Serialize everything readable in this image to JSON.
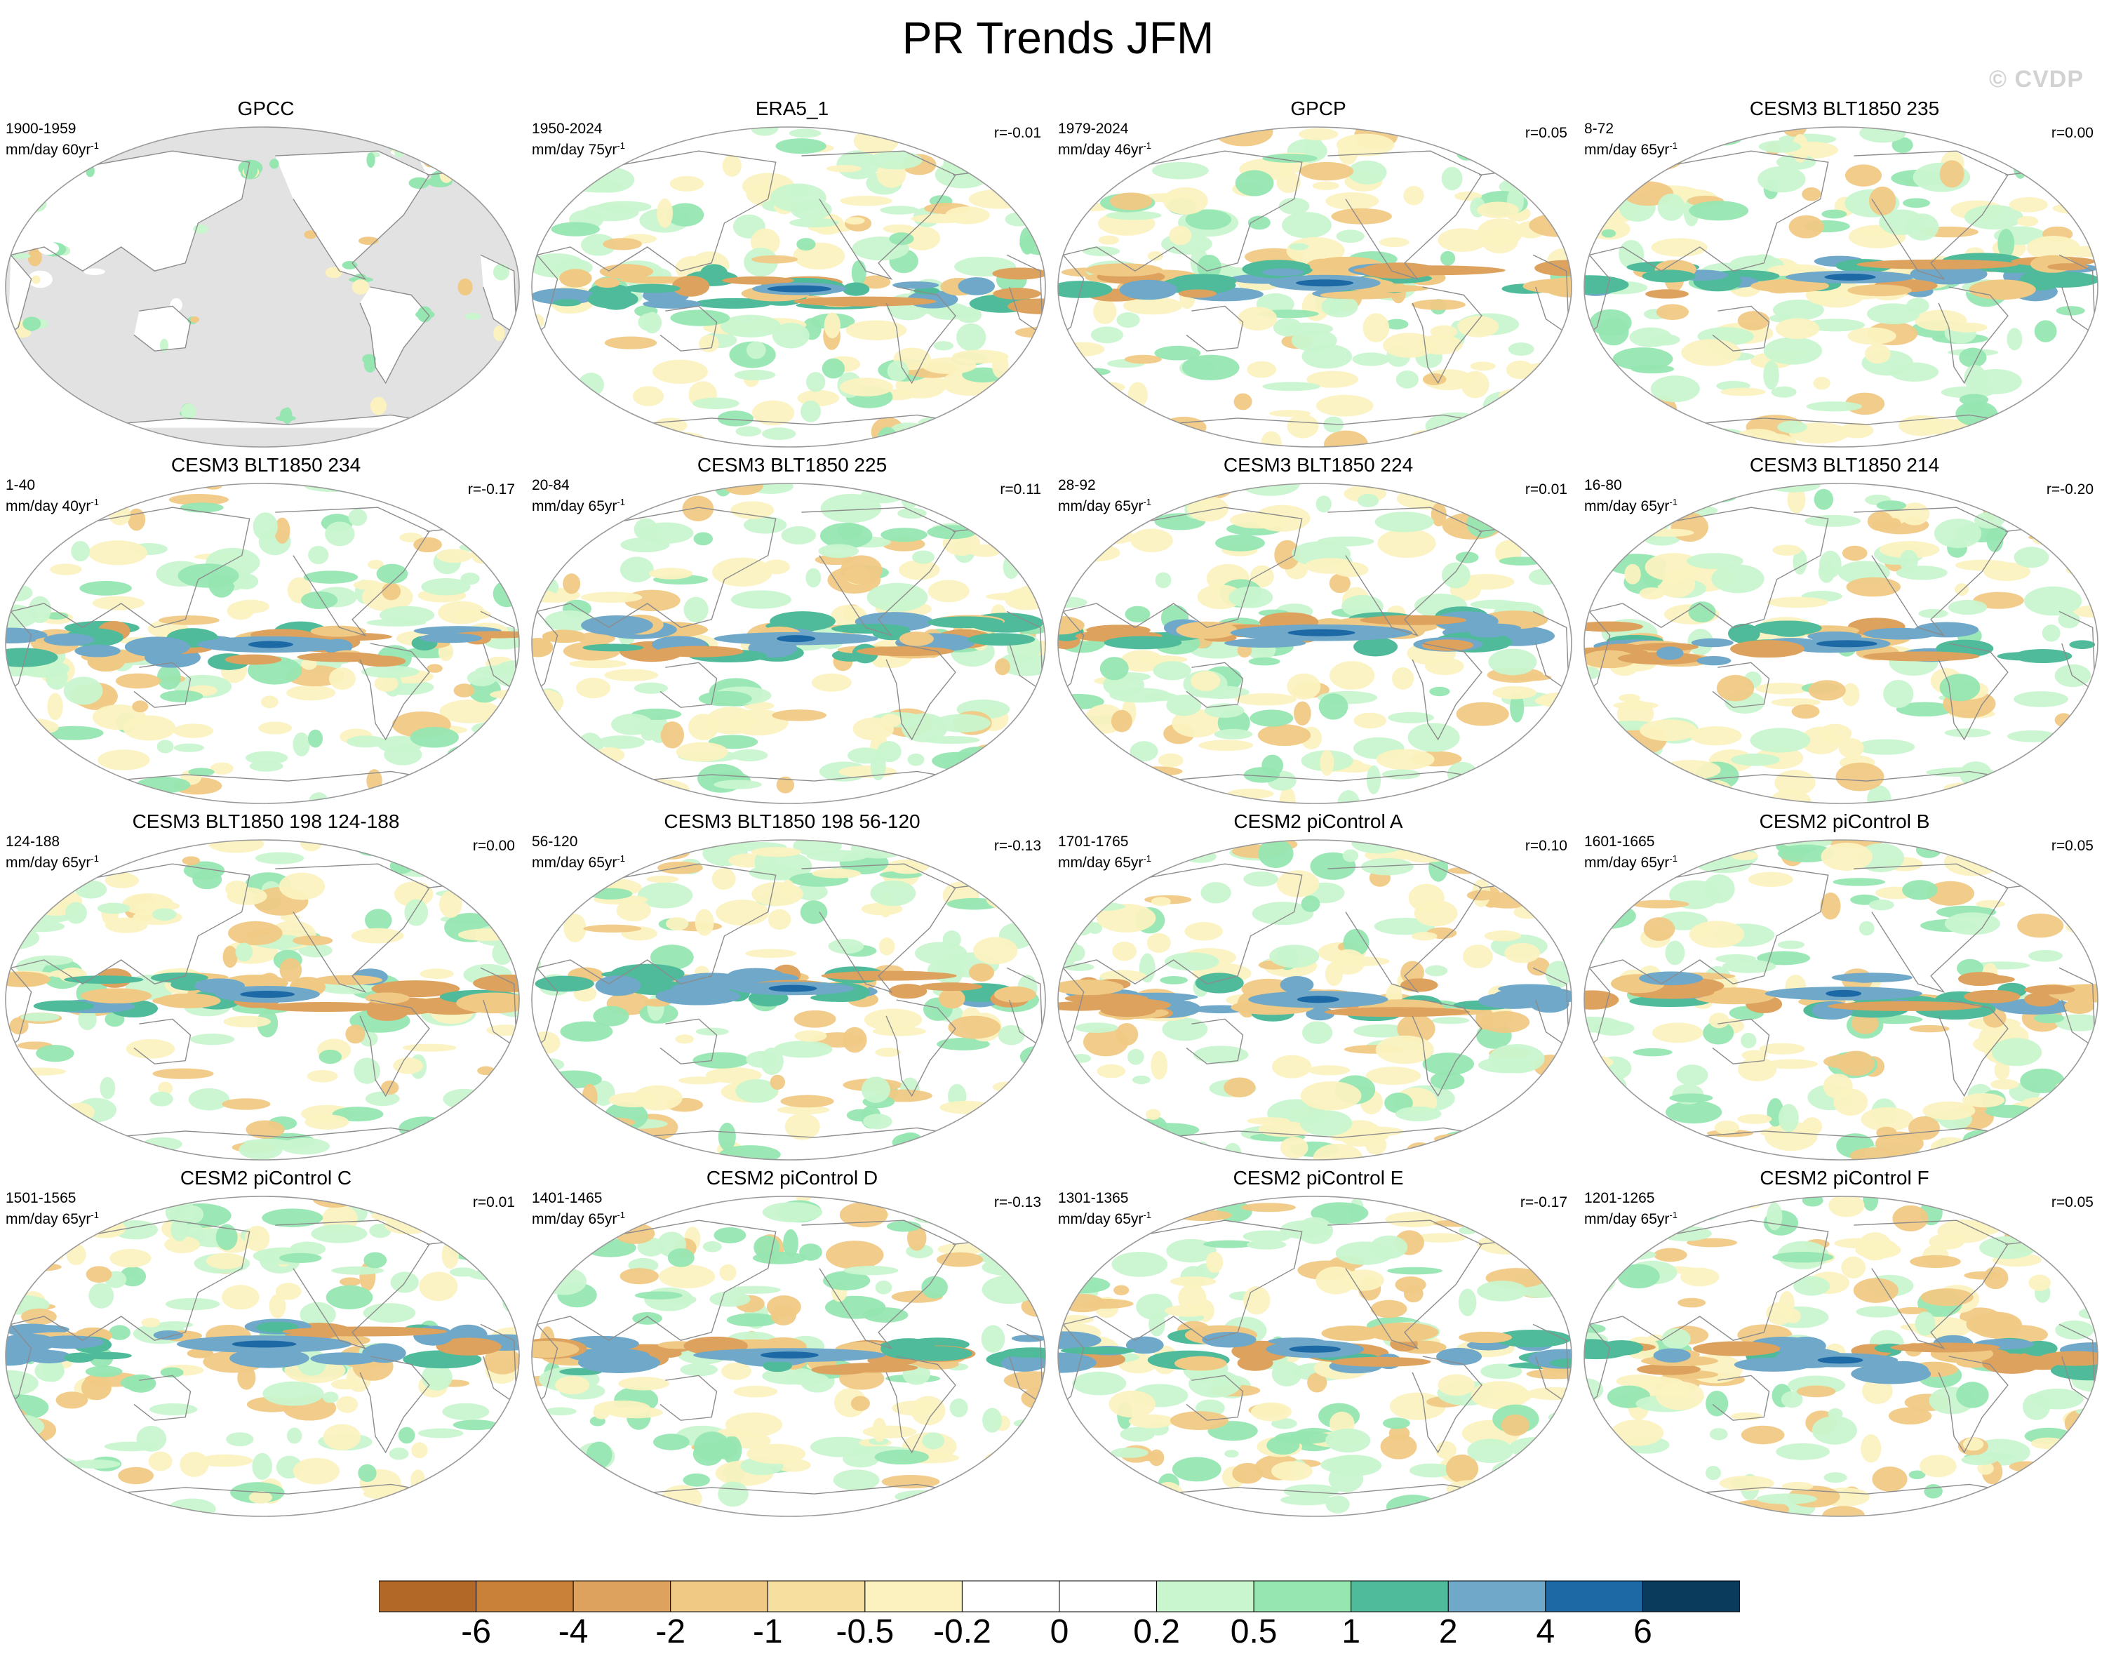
{
  "figure": {
    "title": "PR Trends JFM",
    "watermark": "© CVDP"
  },
  "panels": [
    {
      "title": "GPCC",
      "period": "1900-1959",
      "units": "mm/day 60yr",
      "r": "",
      "variant": 0,
      "land_only": true
    },
    {
      "title": "ERA5_1",
      "period": "1950-2024",
      "units": "mm/day 75yr",
      "r": "r=-0.01",
      "variant": 1,
      "land_only": false
    },
    {
      "title": "GPCP",
      "period": "1979-2024",
      "units": "mm/day 46yr",
      "r": "r=0.05",
      "variant": 2,
      "land_only": false
    },
    {
      "title": "CESM3 BLT1850 235",
      "period": "8-72",
      "units": "mm/day 65yr",
      "r": "r=0.00",
      "variant": 3,
      "land_only": false
    },
    {
      "title": "CESM3 BLT1850 234",
      "period": "1-40",
      "units": "mm/day 40yr",
      "r": "r=-0.17",
      "variant": 4,
      "land_only": false
    },
    {
      "title": "CESM3 BLT1850 225",
      "period": "20-84",
      "units": "mm/day 65yr",
      "r": "r=0.11",
      "variant": 5,
      "land_only": false
    },
    {
      "title": "CESM3 BLT1850 224",
      "period": "28-92",
      "units": "mm/day 65yr",
      "r": "r=0.01",
      "variant": 6,
      "land_only": false
    },
    {
      "title": "CESM3 BLT1850 214",
      "period": "16-80",
      "units": "mm/day 65yr",
      "r": "r=-0.20",
      "variant": 7,
      "land_only": false
    },
    {
      "title": "CESM3 BLT1850 198 124-188",
      "period": "124-188",
      "units": "mm/day 65yr",
      "r": "r=0.00",
      "variant": 8,
      "land_only": false
    },
    {
      "title": "CESM3 BLT1850 198 56-120",
      "period": "56-120",
      "units": "mm/day 65yr",
      "r": "r=-0.13",
      "variant": 9,
      "land_only": false
    },
    {
      "title": "CESM2 piControl A",
      "period": "1701-1765",
      "units": "mm/day 65yr",
      "r": "r=0.10",
      "variant": 10,
      "land_only": false
    },
    {
      "title": "CESM2 piControl B",
      "period": "1601-1665",
      "units": "mm/day 65yr",
      "r": "r=0.05",
      "variant": 11,
      "land_only": false
    },
    {
      "title": "CESM2 piControl C",
      "period": "1501-1565",
      "units": "mm/day 65yr",
      "r": "r=0.01",
      "variant": 12,
      "land_only": false
    },
    {
      "title": "CESM2 piControl D",
      "period": "1401-1465",
      "units": "mm/day 65yr",
      "r": "r=-0.13",
      "variant": 13,
      "land_only": false
    },
    {
      "title": "CESM2 piControl E",
      "period": "1301-1365",
      "units": "mm/day 65yr",
      "r": "r=-0.17",
      "variant": 14,
      "land_only": false
    },
    {
      "title": "CESM2 piControl F",
      "period": "1201-1265",
      "units": "mm/day 65yr",
      "r": "r=0.05",
      "variant": 15,
      "land_only": false
    }
  ],
  "colorbar": {
    "labels": [
      "-6",
      "-4",
      "-2",
      "-1",
      "-0.5",
      "-0.2",
      "0",
      "0.2",
      "0.5",
      "1",
      "2",
      "4",
      "6"
    ],
    "colors": [
      "#b26827",
      "#c98039",
      "#dca25e",
      "#f0c985",
      "#f6df9f",
      "#fbf2c0",
      "#ffffff",
      "#ffffff",
      "#c9f5cf",
      "#96e6b2",
      "#4fbb9a",
      "#6fa8c8",
      "#1c69a6",
      "#0a3a5c"
    ]
  },
  "map_colors": {
    "land_fill": "#e2e2e2",
    "coast": "#8c8c8c",
    "frame": "#9a9a9a",
    "dry3": "#dca25e",
    "dry2": "#f0c985",
    "dry1": "#fbf2c0",
    "wet1": "#c9f5cf",
    "wet2": "#96e6b2",
    "wet3": "#4fbb9a",
    "wet4": "#6fa8c8",
    "wet5": "#1c69a6"
  }
}
